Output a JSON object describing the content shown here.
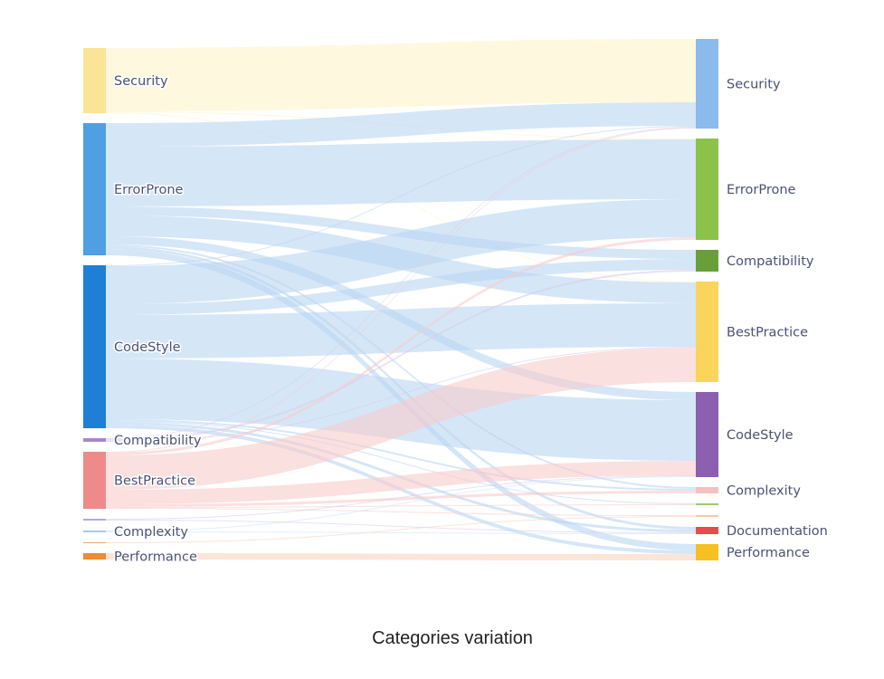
{
  "title": "Categories variation",
  "chart_data": {
    "type": "sankey",
    "title": "Categories variation",
    "sources": [
      {
        "id": "s_security",
        "label": "Security",
        "value": 72,
        "color": "#fce497"
      },
      {
        "id": "s_errorprone",
        "label": "ErrorProne",
        "value": 146,
        "color": "#4f9fe3"
      },
      {
        "id": "s_codestyle",
        "label": "CodeStyle",
        "value": 180,
        "color": "#1f7fd6"
      },
      {
        "id": "s_compatibility",
        "label": "Compatibility",
        "value": 4,
        "color": "#a688c9"
      },
      {
        "id": "s_bestpractice",
        "label": "BestPractice",
        "value": 63,
        "color": "#ef8a8a"
      },
      {
        "id": "s_unlabeled1",
        "label": "",
        "value": 2,
        "color": "#b8a6d9"
      },
      {
        "id": "s_complexity",
        "label": "Complexity",
        "value": 2,
        "color": "#a9cbe8"
      },
      {
        "id": "s_unlabeled2",
        "label": "",
        "value": 1,
        "color": "#f4a27a"
      },
      {
        "id": "s_performance",
        "label": "Performance",
        "value": 7,
        "color": "#ef8a35"
      }
    ],
    "targets": [
      {
        "id": "t_security",
        "label": "Security",
        "value": 99,
        "color": "#8abbec"
      },
      {
        "id": "t_errorprone",
        "label": "ErrorProne",
        "value": 112,
        "color": "#8bc34a"
      },
      {
        "id": "t_compatibility",
        "label": "Compatibility",
        "value": 24,
        "color": "#689f38"
      },
      {
        "id": "t_bestpractice",
        "label": "BestPractice",
        "value": 111,
        "color": "#f9d55b"
      },
      {
        "id": "t_codestyle",
        "label": "CodeStyle",
        "value": 94,
        "color": "#8c5fb0"
      },
      {
        "id": "t_complexity",
        "label": "Complexity",
        "value": 7,
        "color": "#f6bfbf"
      },
      {
        "id": "t_unlabeled1",
        "label": "",
        "value": 2,
        "color": "#9ccc65"
      },
      {
        "id": "t_unlabeled2",
        "label": "",
        "value": 2,
        "color": "#f8c9a0"
      },
      {
        "id": "t_documentation",
        "label": "Documentation",
        "value": 8,
        "color": "#e84b4b"
      },
      {
        "id": "t_performance",
        "label": "Performance",
        "value": 18,
        "color": "#f6c022"
      }
    ],
    "links": [
      [
        "s_security",
        "t_security",
        70
      ],
      [
        "s_security",
        "t_errorprone",
        1
      ],
      [
        "s_security",
        "t_bestpractice",
        1
      ],
      [
        "s_errorprone",
        "t_security",
        26
      ],
      [
        "s_errorprone",
        "t_errorprone",
        66
      ],
      [
        "s_errorprone",
        "t_compatibility",
        10
      ],
      [
        "s_errorprone",
        "t_bestpractice",
        23
      ],
      [
        "s_errorprone",
        "t_codestyle",
        9
      ],
      [
        "s_errorprone",
        "t_complexity",
        2
      ],
      [
        "s_errorprone",
        "t_documentation",
        3
      ],
      [
        "s_errorprone",
        "t_performance",
        7
      ],
      [
        "s_codestyle",
        "t_security",
        1
      ],
      [
        "s_codestyle",
        "t_errorprone",
        42
      ],
      [
        "s_codestyle",
        "t_compatibility",
        12
      ],
      [
        "s_codestyle",
        "t_bestpractice",
        48
      ],
      [
        "s_codestyle",
        "t_codestyle",
        67
      ],
      [
        "s_codestyle",
        "t_complexity",
        2
      ],
      [
        "s_codestyle",
        "t_unlabeled1",
        1
      ],
      [
        "s_codestyle",
        "t_documentation",
        3
      ],
      [
        "s_codestyle",
        "t_performance",
        4
      ],
      [
        "s_compatibility",
        "t_security",
        1
      ],
      [
        "s_compatibility",
        "t_compatibility",
        2
      ],
      [
        "s_compatibility",
        "t_bestpractice",
        1
      ],
      [
        "s_bestpractice",
        "t_security",
        1
      ],
      [
        "s_bestpractice",
        "t_errorprone",
        3
      ],
      [
        "s_bestpractice",
        "t_bestpractice",
        38
      ],
      [
        "s_bestpractice",
        "t_codestyle",
        16
      ],
      [
        "s_bestpractice",
        "t_complexity",
        3
      ],
      [
        "s_bestpractice",
        "t_unlabeled1",
        1
      ],
      [
        "s_bestpractice",
        "t_unlabeled2",
        1
      ],
      [
        "s_unlabeled1",
        "t_codestyle",
        1
      ],
      [
        "s_unlabeled1",
        "t_documentation",
        1
      ],
      [
        "s_complexity",
        "t_codestyle",
        1
      ],
      [
        "s_complexity",
        "t_documentation",
        1
      ],
      [
        "s_unlabeled2",
        "t_unlabeled2",
        1
      ],
      [
        "s_performance",
        "t_performance",
        7
      ]
    ],
    "link_colors": {
      "s_security": "#fdf3c8",
      "s_errorprone": "#b9d6f2",
      "s_codestyle": "#b9d6f2",
      "s_compatibility": "#d9cdea",
      "s_bestpractice": "#f9cccc",
      "s_unlabeled1": "#d9cdea",
      "s_complexity": "#cfe4f3",
      "s_unlabeled2": "#f9d3bd",
      "s_performance": "#f9d3bd"
    }
  }
}
